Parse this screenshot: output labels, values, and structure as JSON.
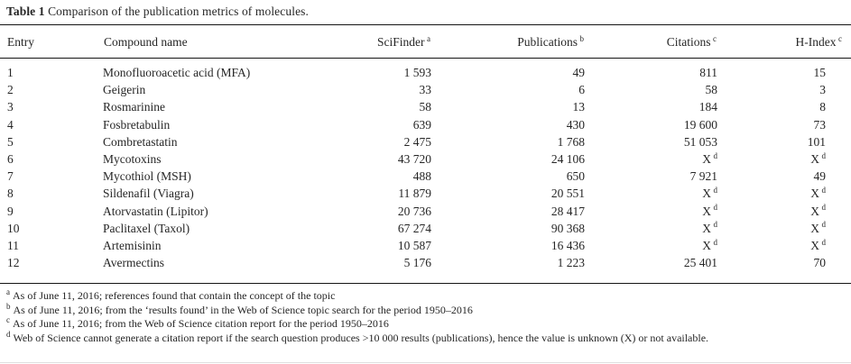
{
  "title": {
    "label": "Table 1",
    "text": "Comparison of the publication metrics of molecules."
  },
  "table": {
    "columns": [
      {
        "label": "Entry",
        "sup": ""
      },
      {
        "label": "Compound name",
        "sup": ""
      },
      {
        "label": "SciFinder",
        "sup": "a"
      },
      {
        "label": "Publications",
        "sup": "b"
      },
      {
        "label": "Citations",
        "sup": "c"
      },
      {
        "label": "H-Index",
        "sup": "c"
      }
    ],
    "rows": [
      {
        "entry": "1",
        "compound": "Monofluoroacetic acid (MFA)",
        "scifinder": {
          "v": "1 593",
          "s": ""
        },
        "publications": {
          "v": "49",
          "s": ""
        },
        "citations": {
          "v": "811",
          "s": ""
        },
        "h_index": {
          "v": "15",
          "s": ""
        }
      },
      {
        "entry": "2",
        "compound": "Geigerin",
        "scifinder": {
          "v": "33",
          "s": ""
        },
        "publications": {
          "v": "6",
          "s": ""
        },
        "citations": {
          "v": "58",
          "s": ""
        },
        "h_index": {
          "v": "3",
          "s": ""
        }
      },
      {
        "entry": "3",
        "compound": "Rosmarinine",
        "scifinder": {
          "v": "58",
          "s": ""
        },
        "publications": {
          "v": "13",
          "s": ""
        },
        "citations": {
          "v": "184",
          "s": ""
        },
        "h_index": {
          "v": "8",
          "s": ""
        }
      },
      {
        "entry": "4",
        "compound": "Fosbretabulin",
        "scifinder": {
          "v": "639",
          "s": ""
        },
        "publications": {
          "v": "430",
          "s": ""
        },
        "citations": {
          "v": "19 600",
          "s": ""
        },
        "h_index": {
          "v": "73",
          "s": ""
        }
      },
      {
        "entry": "5",
        "compound": "Combretastatin",
        "scifinder": {
          "v": "2 475",
          "s": ""
        },
        "publications": {
          "v": "1 768",
          "s": ""
        },
        "citations": {
          "v": "51 053",
          "s": ""
        },
        "h_index": {
          "v": "101",
          "s": ""
        }
      },
      {
        "entry": "6",
        "compound": "Mycotoxins",
        "scifinder": {
          "v": "43 720",
          "s": ""
        },
        "publications": {
          "v": "24 106",
          "s": ""
        },
        "citations": {
          "v": "X",
          "s": "d"
        },
        "h_index": {
          "v": "X",
          "s": "d"
        }
      },
      {
        "entry": "7",
        "compound": "Mycothiol (MSH)",
        "scifinder": {
          "v": "488",
          "s": ""
        },
        "publications": {
          "v": "650",
          "s": ""
        },
        "citations": {
          "v": "7 921",
          "s": ""
        },
        "h_index": {
          "v": "49",
          "s": ""
        }
      },
      {
        "entry": "8",
        "compound": "Sildenafil (Viagra)",
        "scifinder": {
          "v": "11 879",
          "s": ""
        },
        "publications": {
          "v": "20 551",
          "s": ""
        },
        "citations": {
          "v": "X",
          "s": "d"
        },
        "h_index": {
          "v": "X",
          "s": "d"
        }
      },
      {
        "entry": "9",
        "compound": "Atorvastatin (Lipitor)",
        "scifinder": {
          "v": "20 736",
          "s": ""
        },
        "publications": {
          "v": "28 417",
          "s": ""
        },
        "citations": {
          "v": "X",
          "s": "d"
        },
        "h_index": {
          "v": "X",
          "s": "d"
        }
      },
      {
        "entry": "10",
        "compound": "Paclitaxel (Taxol)",
        "scifinder": {
          "v": "67 274",
          "s": ""
        },
        "publications": {
          "v": "90 368",
          "s": ""
        },
        "citations": {
          "v": "X",
          "s": "d"
        },
        "h_index": {
          "v": "X",
          "s": "d"
        }
      },
      {
        "entry": "11",
        "compound": "Artemisinin",
        "scifinder": {
          "v": "10 587",
          "s": ""
        },
        "publications": {
          "v": "16 436",
          "s": ""
        },
        "citations": {
          "v": "X",
          "s": "d"
        },
        "h_index": {
          "v": "X",
          "s": "d"
        }
      },
      {
        "entry": "12",
        "compound": "Avermectins",
        "scifinder": {
          "v": "5 176",
          "s": ""
        },
        "publications": {
          "v": "1 223",
          "s": ""
        },
        "citations": {
          "v": "25 401",
          "s": ""
        },
        "h_index": {
          "v": "70",
          "s": ""
        }
      }
    ]
  },
  "footnotes": [
    {
      "sup": "a",
      "text": "As of June 11, 2016; references found that contain the concept of the topic"
    },
    {
      "sup": "b",
      "text": "As of June 11, 2016; from the ‘results found’ in the Web of Science topic search for the period 1950–2016"
    },
    {
      "sup": "c",
      "text": "As of June 11, 2016; from the Web of Science citation report for the period 1950–2016"
    },
    {
      "sup": "d",
      "text": "Web of Science cannot generate a citation report if the search question produces >10 000 results (publications), hence the value is unknown (X) or not available."
    }
  ],
  "colors": {
    "text": "#262626",
    "rule": "#151515",
    "background": "#ffffff"
  }
}
